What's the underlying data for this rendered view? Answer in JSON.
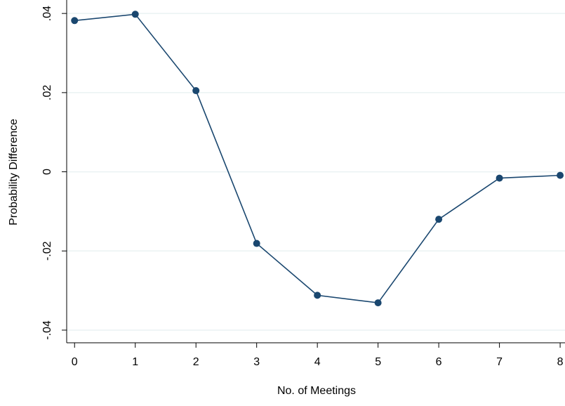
{
  "chart_data": {
    "type": "line",
    "x_label": "No. of Meetings",
    "y_label": "Probability Difference",
    "x": [
      0,
      1,
      2,
      3,
      4,
      5,
      6,
      7,
      8
    ],
    "series": [
      {
        "color": "#1a476f",
        "values": [
          0.0382,
          0.0398,
          0.0205,
          -0.0181,
          -0.0312,
          -0.0331,
          -0.012,
          -0.0016,
          -0.0009
        ]
      }
    ],
    "xlim": [
      -0.13,
      8.08
    ],
    "xticks": [
      0,
      1,
      2,
      3,
      4,
      5,
      6,
      7,
      8
    ],
    "ylim": [
      -0.0432,
      0.0434
    ],
    "yticks": [
      {
        "value": -0.04,
        "label": "-.04"
      },
      {
        "value": -0.02,
        "label": "-.02"
      },
      0,
      {
        "value": 0.02,
        "label": ".02"
      },
      {
        "value": 0.04,
        "label": ".04"
      }
    ],
    "grid": true
  }
}
